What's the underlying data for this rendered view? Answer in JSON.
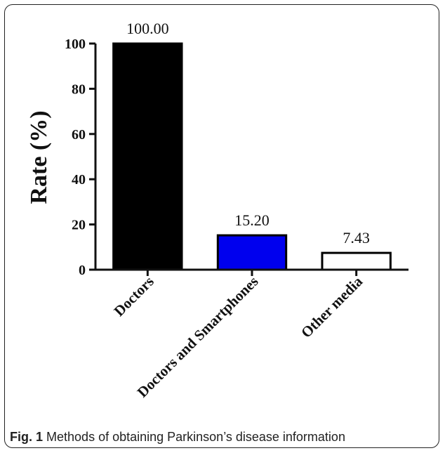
{
  "chart_data": {
    "type": "bar",
    "categories": [
      "Doctors",
      "Doctors and Smartphones",
      "Other media"
    ],
    "values": [
      100.0,
      15.2,
      7.43
    ],
    "value_labels": [
      "100.00",
      "15.20",
      "7.43"
    ],
    "bar_colors": [
      "#000000",
      "#0000ee",
      "#ffffff"
    ],
    "ylabel": "Rate (%)",
    "xlabel": "",
    "ylim": [
      0,
      100
    ],
    "yticks": [
      0,
      20,
      40,
      60,
      80,
      100
    ],
    "grid": false
  },
  "caption": {
    "label": "Fig. 1",
    "text": "Methods of obtaining Parkinson’s disease information"
  }
}
